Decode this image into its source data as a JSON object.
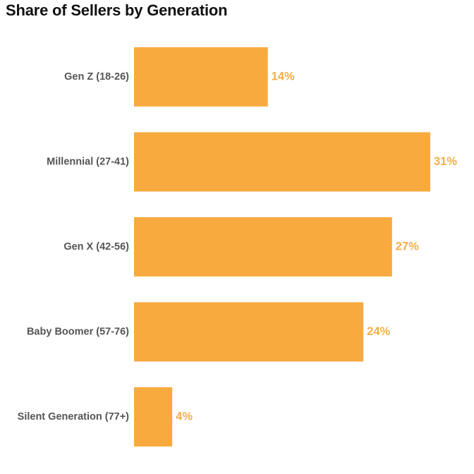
{
  "chart_data": {
    "type": "bar",
    "orientation": "horizontal",
    "title": "Share of Sellers by Generation",
    "categories": [
      "Gen Z (18-26)",
      "Millennial (27-41)",
      "Gen X (42-56)",
      "Baby Boomer (57-76)",
      "Silent Generation (77+)"
    ],
    "values": [
      14,
      31,
      27,
      24,
      4
    ],
    "value_labels": [
      "14%",
      "31%",
      "27%",
      "24%",
      "4%"
    ],
    "unit": "%",
    "xlim": [
      0,
      31
    ],
    "grid": false,
    "legend": "none",
    "colors": {
      "bar": "#F8AA3F",
      "value_label": "#F5AE48",
      "category_label": "#555555",
      "title": "#111111"
    }
  }
}
